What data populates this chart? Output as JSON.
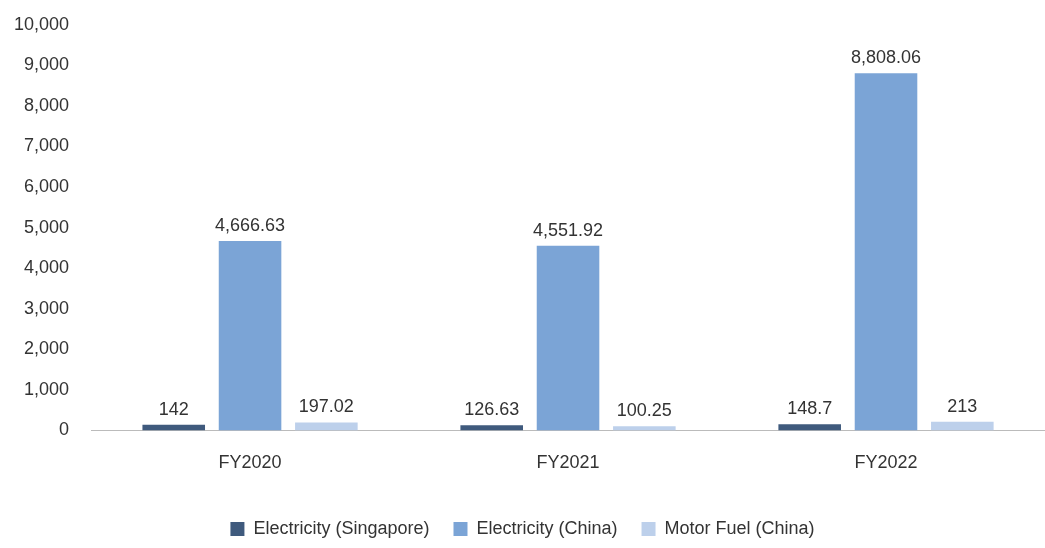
{
  "chart_data": {
    "type": "bar",
    "categories": [
      "FY2020",
      "FY2021",
      "FY2022"
    ],
    "series": [
      {
        "name": "Electricity (Singapore)",
        "color": "#3f5a7d",
        "values": [
          142,
          126.63,
          148.7
        ],
        "value_labels": [
          "142",
          "126.63",
          "148.7"
        ]
      },
      {
        "name": "Electricity (China)",
        "color": "#7ba4d6",
        "values": [
          4666.63,
          4551.92,
          8808.06
        ],
        "value_labels": [
          "4,666.63",
          "4,551.92",
          "8,808.06"
        ]
      },
      {
        "name": "Motor Fuel (China)",
        "color": "#bdd0eb",
        "values": [
          197.02,
          100.25,
          213
        ],
        "value_labels": [
          "197.02",
          "100.25",
          "213"
        ]
      }
    ],
    "ylim": [
      0,
      10000
    ],
    "yticks": [
      0,
      {
        "value": 1000,
        "label": "1,000"
      },
      {
        "value": 2000,
        "label": "2,000"
      },
      {
        "value": 3000,
        "label": "3,000"
      },
      {
        "value": 4000,
        "label": "4,000"
      },
      {
        "value": 5000,
        "label": "5,000"
      },
      {
        "value": 6000,
        "label": "6,000"
      },
      {
        "value": 7000,
        "label": "7,000"
      },
      {
        "value": 8000,
        "label": "8,000"
      },
      {
        "value": 9000,
        "label": "9,000"
      },
      {
        "value": 10000,
        "label": "10,000"
      }
    ],
    "legend": "bottom"
  }
}
